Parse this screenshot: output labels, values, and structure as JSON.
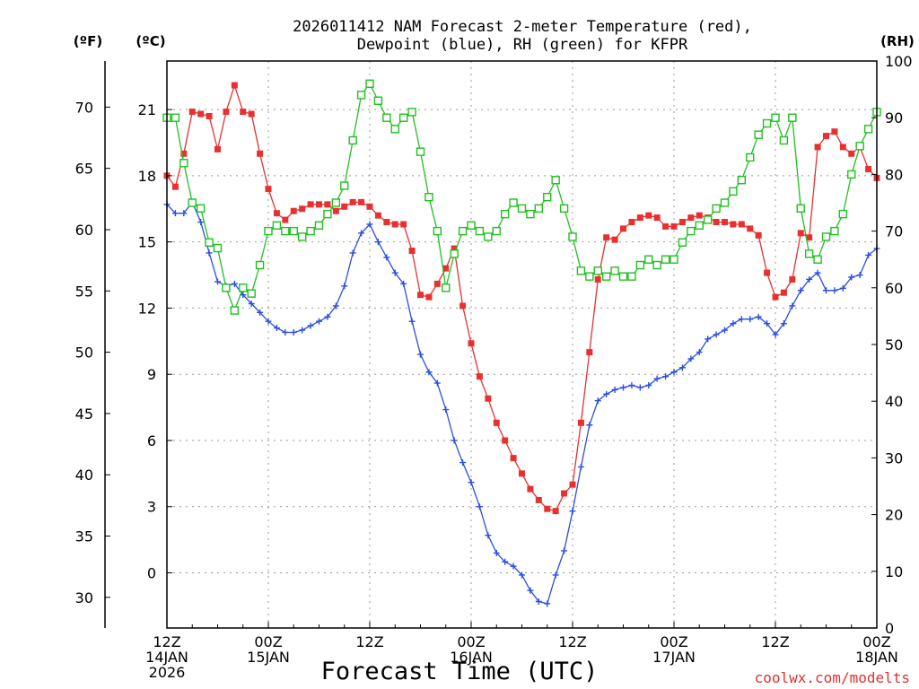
{
  "chart_data": {
    "type": "line",
    "title_line1": "2026011412 NAM Forecast 2-meter Temperature (red),",
    "title_line2": "Dewpoint (blue), RH (green) for KFPR",
    "unit_f": "(ºF)",
    "unit_c": "(ºC)",
    "unit_rh": "(RH)",
    "xlabel": "Forecast Time (UTC)",
    "credit": "coolwx.com/modelts",
    "xlim": [
      0,
      84
    ],
    "ylim_c": [
      -2.5,
      23.2
    ],
    "ylim_rh": [
      0,
      100
    ],
    "f_ticks": [
      "30",
      "35",
      "40",
      "45",
      "50",
      "55",
      "60",
      "65",
      "70"
    ],
    "c_ticks": [
      "0",
      "3",
      "6",
      "9",
      "12",
      "15",
      "18",
      "21"
    ],
    "rh_ticks": [
      "0",
      "10",
      "20",
      "30",
      "40",
      "50",
      "60",
      "70",
      "80",
      "90",
      "100"
    ],
    "x_ticks": [
      {
        "hour": 0,
        "l1": "12Z",
        "l2": "14JAN",
        "l3": "2026"
      },
      {
        "hour": 12,
        "l1": "00Z",
        "l2": "15JAN",
        "l3": ""
      },
      {
        "hour": 24,
        "l1": "12Z",
        "l2": "",
        "l3": ""
      },
      {
        "hour": 36,
        "l1": "00Z",
        "l2": "16JAN",
        "l3": ""
      },
      {
        "hour": 48,
        "l1": "12Z",
        "l2": "",
        "l3": ""
      },
      {
        "hour": 60,
        "l1": "00Z",
        "l2": "17JAN",
        "l3": ""
      },
      {
        "hour": 72,
        "l1": "12Z",
        "l2": "",
        "l3": ""
      },
      {
        "hour": 84,
        "l1": "00Z",
        "l2": "18JAN",
        "l3": ""
      }
    ],
    "series": [
      {
        "name": "Temperature (°C)",
        "color": "#e83030",
        "axis": "C",
        "marker": "filled-square",
        "values": [
          18.0,
          17.5,
          19.0,
          20.9,
          20.8,
          20.7,
          19.2,
          20.9,
          22.1,
          20.9,
          20.8,
          19.0,
          17.4,
          16.3,
          16.0,
          16.4,
          16.5,
          16.7,
          16.7,
          16.7,
          16.4,
          16.6,
          16.8,
          16.8,
          16.6,
          16.2,
          15.9,
          15.8,
          15.8,
          14.6,
          12.6,
          12.5,
          13.1,
          13.8,
          14.7,
          12.1,
          10.4,
          8.9,
          7.9,
          6.8,
          6.0,
          5.2,
          4.5,
          3.8,
          3.3,
          2.9,
          2.8,
          3.6,
          4.0,
          6.8,
          10.0,
          13.3,
          15.2,
          15.1,
          15.6,
          15.9,
          16.1,
          16.2,
          16.1,
          15.7,
          15.7,
          15.9,
          16.1,
          16.2,
          16.1,
          15.9,
          15.9,
          15.8,
          15.8,
          15.6,
          15.3,
          13.6,
          12.5,
          12.7,
          13.3,
          15.4,
          15.2,
          19.3,
          19.8,
          20.0,
          19.3,
          19.0,
          19.3,
          18.3,
          17.9
        ]
      },
      {
        "name": "Dewpoint (°C)",
        "color": "#2a4ee0",
        "axis": "C",
        "marker": "plus",
        "values": [
          16.7,
          16.3,
          16.3,
          16.8,
          15.9,
          14.5,
          13.2,
          13.0,
          13.1,
          12.6,
          12.2,
          11.8,
          11.4,
          11.1,
          10.9,
          10.9,
          11.0,
          11.2,
          11.4,
          11.6,
          12.1,
          13.0,
          14.5,
          15.4,
          15.8,
          15.0,
          14.3,
          13.6,
          13.1,
          11.4,
          9.9,
          9.1,
          8.6,
          7.4,
          6.0,
          5.0,
          4.1,
          3.0,
          1.7,
          0.9,
          0.5,
          0.3,
          -0.1,
          -0.8,
          -1.3,
          -1.4,
          -0.1,
          1.0,
          2.8,
          4.8,
          6.7,
          7.8,
          8.1,
          8.3,
          8.4,
          8.5,
          8.4,
          8.5,
          8.8,
          8.9,
          9.1,
          9.3,
          9.7,
          10.0,
          10.6,
          10.8,
          11.0,
          11.3,
          11.5,
          11.5,
          11.6,
          11.3,
          10.8,
          11.3,
          12.1,
          12.8,
          13.3,
          13.6,
          12.8,
          12.8,
          12.9,
          13.4,
          13.5,
          14.4,
          14.7
        ]
      },
      {
        "name": "RH (%)",
        "color": "#20c020",
        "axis": "RH",
        "marker": "open-square",
        "values": [
          90,
          90,
          82,
          75,
          74,
          68,
          67,
          60,
          56,
          60,
          59,
          64,
          70,
          71,
          70,
          70,
          69,
          70,
          71,
          73,
          75,
          78,
          86,
          94,
          96,
          93,
          90,
          88,
          90,
          91,
          84,
          76,
          70,
          60,
          66,
          70,
          71,
          70,
          69,
          70,
          73,
          75,
          74,
          73,
          74,
          76,
          79,
          74,
          69,
          63,
          62,
          63,
          62,
          63,
          62,
          62,
          64,
          65,
          64,
          65,
          65,
          68,
          70,
          71,
          72,
          74,
          75,
          77,
          79,
          83,
          87,
          89,
          90,
          86,
          90,
          74,
          66,
          65,
          69,
          70,
          73,
          80,
          85,
          88,
          91
        ]
      }
    ]
  }
}
